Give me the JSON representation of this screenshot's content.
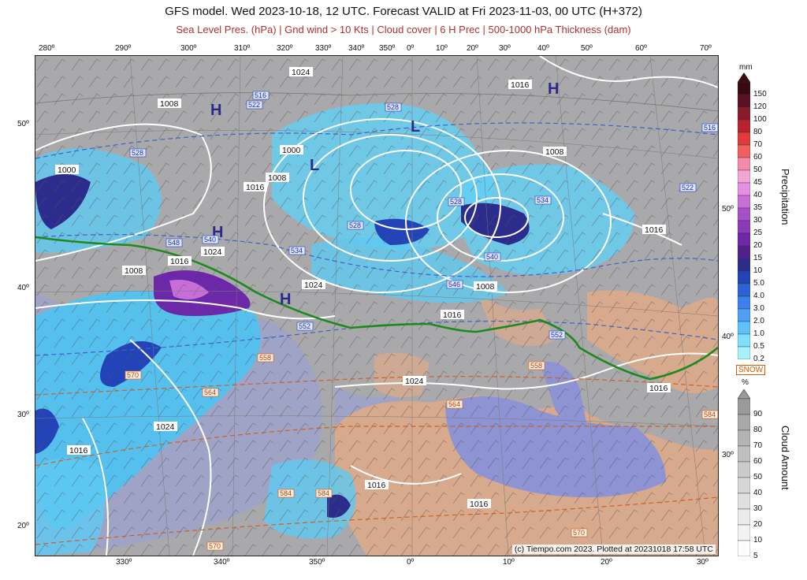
{
  "title": "GFS model. Wed 2023-10-18, 12 UTC. Forecast VALID at Fri 2023-11-03, 00 UTC (H+372)",
  "subtitle": "Sea Level Pres. (hPa) | Gnd wind > 10 Kts | Cloud cover | 6 H Prec | 500-1000 hPa Thickness (dam)",
  "top_ticks": [
    "280º",
    "290º",
    "300º",
    "310º",
    "320º",
    "330º",
    "340º",
    "350º",
    "0º",
    "10º",
    "20º",
    "30º",
    "40º",
    "50º",
    "60º",
    "70º"
  ],
  "bottom_ticks": [
    "330º",
    "340º",
    "350º",
    "0º",
    "10º",
    "20º",
    "30º"
  ],
  "left_ticks": [
    "50º",
    "40º",
    "30º",
    "20º"
  ],
  "right_ticks": [
    "50º",
    "40º",
    "30º"
  ],
  "pressure_labels": [
    "1024",
    "1008",
    "1000",
    "1016",
    "1008",
    "1000",
    "1016",
    "1024",
    "1008",
    "1016",
    "1024",
    "1016",
    "1016",
    "1008",
    "1016",
    "1024",
    "1008",
    "1016",
    "1016",
    "1024",
    "1016"
  ],
  "thickness_labels": [
    "516",
    "522",
    "528",
    "528",
    "534",
    "540",
    "546",
    "548",
    "540",
    "534",
    "528",
    "522",
    "516",
    "528",
    "552",
    "552",
    "558",
    "558",
    "564",
    "564",
    "570",
    "570",
    "584",
    "584",
    "570",
    "584"
  ],
  "highs": [
    "H",
    "H",
    "H",
    "H"
  ],
  "lows": [
    "L",
    "L",
    "L"
  ],
  "credit": "(c) Tiempo.com 2023. Plotted at 20231018 17:58 UTC",
  "precip_legend": {
    "unit": "mm",
    "title": "Precipitation",
    "levels": [
      "150",
      "120",
      "100",
      "80",
      "70",
      "60",
      "50",
      "45",
      "40",
      "35",
      "30",
      "25",
      "20",
      "15",
      "10",
      "5.0",
      "4.0",
      "3.0",
      "2.0",
      "1.0",
      "0.5",
      "0.2"
    ],
    "colors": [
      "#3a0a12",
      "#5a1020",
      "#8a1a28",
      "#b82230",
      "#e03a3a",
      "#f06060",
      "#f58aa8",
      "#f2a6d6",
      "#e78fe0",
      "#c86ed8",
      "#a650c8",
      "#8a3cb8",
      "#6c28a8",
      "#52208e",
      "#2c2c8c",
      "#2244b8",
      "#2a62d8",
      "#3c80ec",
      "#4ea0f6",
      "#5ec2fa",
      "#7ee0fc",
      "#a8f2fe"
    ]
  },
  "snow_label": "SNOW",
  "cloud_legend": {
    "unit": "%",
    "title": "Cloud Amount",
    "levels": [
      "90",
      "80",
      "70",
      "60",
      "50",
      "40",
      "30",
      "20",
      "10",
      "5"
    ],
    "colors": [
      "#9a9a9a",
      "#a8a8a8",
      "#b4b4b4",
      "#c0c0c0",
      "#cbcbcb",
      "#d6d6d6",
      "#e0e0e0",
      "#eaeaea",
      "#f3f3f3",
      "#ffffff"
    ]
  }
}
